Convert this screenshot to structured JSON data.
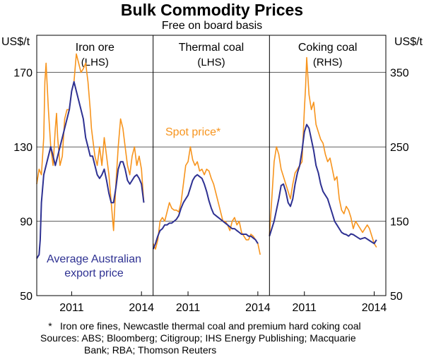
{
  "title": "Bulk Commodity Prices",
  "subtitle": "Free on board basis",
  "colors": {
    "spot": "#F7941D",
    "export": "#2E3192"
  },
  "footnote": {
    "marker": "*",
    "text": "Iron ore fines, Newcastle thermal coal and premium hard coking coal"
  },
  "sources": {
    "line1": "Sources: ABS; Bloomberg; Citigroup; IHS Energy Publishing; Macquarie",
    "line2": "Bank; RBA; Thomson Reuters"
  },
  "chart_data": {
    "type": "line",
    "left_axis": {
      "unit_label": "US$/t",
      "ylim": [
        50,
        190
      ],
      "ticks": [
        50,
        90,
        130,
        170
      ]
    },
    "right_axis": {
      "unit_label": "US$/t",
      "ylim": [
        50,
        400
      ],
      "ticks": [
        50,
        150,
        250,
        350
      ]
    },
    "x_ticks": [
      "2011",
      "2014"
    ],
    "x_range": [
      2009.5,
      2014.5
    ],
    "annotations": {
      "spot_label": "Spot price*",
      "export_label_1": "Average Australian",
      "export_label_2": "export price"
    },
    "panels": [
      {
        "name": "Iron ore",
        "axis_note": "(LHS)",
        "axis": "left",
        "series": [
          {
            "name": "Spot price*",
            "color_key": "spot",
            "x": [
              2009.5,
              2009.6,
              2009.7,
              2009.8,
              2009.85,
              2009.9,
              2010.0,
              2010.1,
              2010.2,
              2010.3,
              2010.35,
              2010.4,
              2010.5,
              2010.6,
              2010.7,
              2010.8,
              2010.9,
              2011.0,
              2011.1,
              2011.2,
              2011.3,
              2011.4,
              2011.5,
              2011.6,
              2011.7,
              2011.8,
              2011.85,
              2011.9,
              2012.0,
              2012.1,
              2012.2,
              2012.3,
              2012.4,
              2012.5,
              2012.6,
              2012.7,
              2012.8,
              2012.9,
              2013.0,
              2013.1,
              2013.2,
              2013.3,
              2013.4,
              2013.5,
              2013.6,
              2013.7,
              2013.8,
              2013.9,
              2014.0,
              2014.1
            ],
            "values": [
              110,
              118,
              115,
              135,
              165,
              175,
              150,
              130,
              120,
              140,
              148,
              135,
              120,
              125,
              145,
              150,
              150,
              160,
              165,
              180,
              175,
              170,
              172,
              175,
              165,
              150,
              140,
              135,
              125,
              120,
              130,
              120,
              135,
              125,
              115,
              100,
              85,
              110,
              130,
              145,
              140,
              130,
              120,
              115,
              125,
              130,
              120,
              125,
              118,
              100
            ]
          },
          {
            "name": "Average Australian export price",
            "color_key": "export",
            "x": [
              2009.5,
              2009.6,
              2009.65,
              2009.7,
              2009.8,
              2009.9,
              2010.0,
              2010.1,
              2010.2,
              2010.3,
              2010.4,
              2010.5,
              2010.6,
              2010.7,
              2010.8,
              2010.9,
              2011.0,
              2011.1,
              2011.2,
              2011.3,
              2011.4,
              2011.5,
              2011.6,
              2011.7,
              2011.8,
              2011.9,
              2012.0,
              2012.1,
              2012.2,
              2012.3,
              2012.4,
              2012.5,
              2012.6,
              2012.7,
              2012.8,
              2012.9,
              2013.0,
              2013.1,
              2013.2,
              2013.3,
              2013.4,
              2013.5,
              2013.6,
              2013.7,
              2013.8,
              2013.9,
              2014.0,
              2014.1
            ],
            "values": [
              70,
              72,
              80,
              100,
              115,
              120,
              125,
              130,
              125,
              120,
              125,
              130,
              135,
              140,
              145,
              150,
              160,
              165,
              160,
              155,
              150,
              145,
              135,
              130,
              125,
              125,
              120,
              115,
              113,
              115,
              118,
              112,
              105,
              100,
              100,
              108,
              118,
              122,
              122,
              118,
              112,
              110,
              112,
              114,
              115,
              113,
              110,
              100
            ]
          }
        ]
      },
      {
        "name": "Thermal coal",
        "axis_note": "(LHS)",
        "axis": "left",
        "series": [
          {
            "name": "Spot price*",
            "color_key": "spot",
            "x": [
              2009.5,
              2009.6,
              2009.7,
              2009.8,
              2009.9,
              2010.0,
              2010.1,
              2010.2,
              2010.3,
              2010.4,
              2010.5,
              2010.6,
              2010.7,
              2010.8,
              2010.9,
              2011.0,
              2011.1,
              2011.2,
              2011.3,
              2011.4,
              2011.5,
              2011.6,
              2011.7,
              2011.8,
              2011.9,
              2012.0,
              2012.1,
              2012.2,
              2012.3,
              2012.4,
              2012.5,
              2012.6,
              2012.7,
              2012.8,
              2012.9,
              2013.0,
              2013.1,
              2013.2,
              2013.3,
              2013.4,
              2013.5,
              2013.6,
              2013.7,
              2013.8,
              2013.9,
              2014.0,
              2014.1
            ],
            "values": [
              78,
              75,
              80,
              90,
              92,
              90,
              95,
              100,
              97,
              96,
              96,
              95,
              100,
              110,
              120,
              122,
              130,
              123,
              120,
              122,
              117,
              118,
              115,
              118,
              117,
              113,
              110,
              105,
              100,
              95,
              90,
              90,
              88,
              85,
              90,
              92,
              88,
              90,
              84,
              82,
              80,
              80,
              83,
              82,
              80,
              78,
              72
            ]
          },
          {
            "name": "Average Australian export price",
            "color_key": "export",
            "x": [
              2009.5,
              2009.6,
              2009.7,
              2009.8,
              2009.9,
              2010.0,
              2010.1,
              2010.2,
              2010.3,
              2010.4,
              2010.5,
              2010.6,
              2010.7,
              2010.8,
              2010.9,
              2011.0,
              2011.1,
              2011.2,
              2011.3,
              2011.4,
              2011.5,
              2011.6,
              2011.7,
              2011.8,
              2011.9,
              2012.0,
              2012.1,
              2012.2,
              2012.3,
              2012.4,
              2012.5,
              2012.6,
              2012.7,
              2012.8,
              2012.9,
              2013.0,
              2013.1,
              2013.2,
              2013.3,
              2013.4,
              2013.5,
              2013.6,
              2013.7,
              2013.8,
              2013.9,
              2014.0
            ],
            "values": [
              75,
              78,
              82,
              85,
              86,
              88,
              88,
              89,
              89,
              90,
              91,
              93,
              97,
              100,
              102,
              104,
              108,
              112,
              114,
              115,
              114,
              113,
              110,
              106,
              101,
              97,
              94,
              93,
              92,
              91,
              90,
              89,
              88,
              87,
              86,
              86,
              85,
              84,
              83,
              83,
              83,
              82,
              82,
              81,
              80,
              78
            ]
          }
        ]
      },
      {
        "name": "Coking coal",
        "axis_note": "(RHS)",
        "axis": "right",
        "series": [
          {
            "name": "Spot price*",
            "color_key": "spot",
            "x": [
              2009.5,
              2009.6,
              2009.7,
              2009.8,
              2009.9,
              2010.0,
              2010.1,
              2010.2,
              2010.3,
              2010.4,
              2010.5,
              2010.6,
              2010.7,
              2010.8,
              2010.9,
              2011.0,
              2011.05,
              2011.1,
              2011.2,
              2011.3,
              2011.4,
              2011.5,
              2011.6,
              2011.7,
              2011.8,
              2011.9,
              2012.0,
              2012.1,
              2012.2,
              2012.3,
              2012.4,
              2012.5,
              2012.6,
              2012.7,
              2012.8,
              2012.9,
              2013.0,
              2013.1,
              2013.2,
              2013.3,
              2013.4,
              2013.5,
              2013.6,
              2013.7,
              2013.8,
              2013.9,
              2014.0,
              2014.1
            ],
            "values": [
              130,
              180,
              230,
              250,
              240,
              220,
              210,
              200,
              190,
              180,
              200,
              215,
              220,
              225,
              230,
              300,
              330,
              370,
              320,
              300,
              310,
              280,
              270,
              260,
              255,
              240,
              230,
              235,
              220,
              205,
              210,
              180,
              165,
              160,
              170,
              165,
              155,
              140,
              150,
              145,
              140,
              135,
              140,
              145,
              140,
              130,
              120,
              115
            ]
          },
          {
            "name": "Average Australian export price",
            "color_key": "export",
            "x": [
              2009.5,
              2009.6,
              2009.7,
              2009.8,
              2009.9,
              2010.0,
              2010.1,
              2010.2,
              2010.3,
              2010.4,
              2010.5,
              2010.6,
              2010.7,
              2010.8,
              2010.9,
              2011.0,
              2011.1,
              2011.2,
              2011.3,
              2011.4,
              2011.5,
              2011.6,
              2011.7,
              2011.8,
              2011.9,
              2012.0,
              2012.1,
              2012.2,
              2012.3,
              2012.4,
              2012.5,
              2012.6,
              2012.7,
              2012.8,
              2012.9,
              2013.0,
              2013.1,
              2013.2,
              2013.3,
              2013.4,
              2013.5,
              2013.6,
              2013.7,
              2013.8,
              2013.9,
              2014.0,
              2014.1
            ],
            "values": [
              130,
              140,
              150,
              165,
              180,
              198,
              200,
              190,
              175,
              170,
              180,
              200,
              215,
              225,
              245,
              270,
              280,
              275,
              260,
              245,
              225,
              215,
              200,
              190,
              185,
              180,
              170,
              160,
              150,
              145,
              140,
              135,
              133,
              132,
              130,
              133,
              132,
              130,
              128,
              126,
              127,
              128,
              126,
              124,
              122,
              120,
              125
            ]
          }
        ]
      }
    ]
  }
}
